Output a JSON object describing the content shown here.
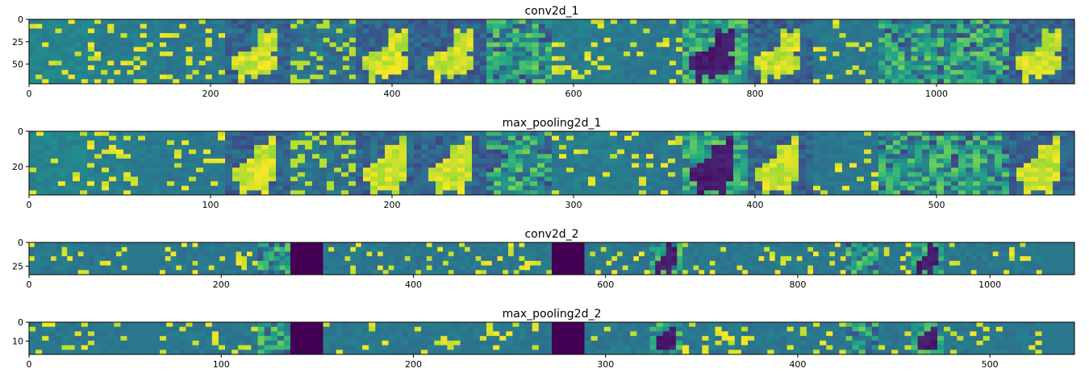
{
  "chart_data": [
    {
      "type": "heatmap",
      "title": "conv2d_1",
      "xlim": [
        0,
        1152
      ],
      "ylim": [
        72,
        0
      ],
      "num_maps": 16,
      "colormap": "viridis",
      "xticks": [
        0,
        200,
        400,
        600,
        800,
        1000
      ],
      "yticks": [
        0,
        25,
        50
      ],
      "grid": false,
      "maps": [
        {
          "style": "edges",
          "level": 0.45,
          "seed": 11
        },
        {
          "style": "edges",
          "level": 0.42,
          "seed": 12
        },
        {
          "style": "edges",
          "level": 0.4,
          "seed": 13
        },
        {
          "style": "fox-bright",
          "level": 0.28,
          "seed": 14
        },
        {
          "style": "noise",
          "level": 0.38,
          "seed": 15
        },
        {
          "style": "fox-bright",
          "level": 0.25,
          "seed": 16
        },
        {
          "style": "fox-bright",
          "level": 0.3,
          "seed": 17
        },
        {
          "style": "texture",
          "level": 0.35,
          "seed": 18
        },
        {
          "style": "edges",
          "level": 0.42,
          "seed": 19
        },
        {
          "style": "edges",
          "level": 0.4,
          "seed": 20
        },
        {
          "style": "fox-dark",
          "level": 0.3,
          "seed": 21
        },
        {
          "style": "fox-bright",
          "level": 0.25,
          "seed": 22
        },
        {
          "style": "edges",
          "level": 0.4,
          "seed": 23
        },
        {
          "style": "texture",
          "level": 0.35,
          "seed": 24
        },
        {
          "style": "texture",
          "level": 0.35,
          "seed": 25
        },
        {
          "style": "fox-bright",
          "level": 0.3,
          "seed": 26
        }
      ]
    },
    {
      "type": "heatmap",
      "title": "max_pooling2d_1",
      "xlim": [
        0,
        576
      ],
      "ylim": [
        36,
        0
      ],
      "num_maps": 16,
      "colormap": "viridis",
      "xticks": [
        0,
        100,
        200,
        300,
        400,
        500
      ],
      "yticks": [
        0,
        20
      ],
      "grid": false,
      "maps": [
        {
          "style": "edges",
          "level": 0.45,
          "seed": 31
        },
        {
          "style": "edges",
          "level": 0.42,
          "seed": 32
        },
        {
          "style": "edges",
          "level": 0.4,
          "seed": 33
        },
        {
          "style": "fox-bright",
          "level": 0.28,
          "seed": 34
        },
        {
          "style": "noise",
          "level": 0.38,
          "seed": 35
        },
        {
          "style": "fox-bright",
          "level": 0.25,
          "seed": 36
        },
        {
          "style": "fox-bright",
          "level": 0.3,
          "seed": 37
        },
        {
          "style": "texture",
          "level": 0.35,
          "seed": 38
        },
        {
          "style": "edges",
          "level": 0.42,
          "seed": 39
        },
        {
          "style": "edges",
          "level": 0.4,
          "seed": 40
        },
        {
          "style": "fox-dark",
          "level": 0.3,
          "seed": 41
        },
        {
          "style": "fox-bright",
          "level": 0.25,
          "seed": 42
        },
        {
          "style": "edges",
          "level": 0.4,
          "seed": 43
        },
        {
          "style": "texture",
          "level": 0.35,
          "seed": 44
        },
        {
          "style": "texture",
          "level": 0.35,
          "seed": 45
        },
        {
          "style": "fox-bright",
          "level": 0.3,
          "seed": 46
        }
      ]
    },
    {
      "type": "heatmap",
      "title": "conv2d_2",
      "xlim": [
        0,
        1088
      ],
      "ylim": [
        34,
        0
      ],
      "num_maps": 32,
      "colormap": "viridis",
      "xticks": [
        0,
        200,
        400,
        600,
        800,
        1000
      ],
      "yticks": [
        0,
        25
      ],
      "grid": false,
      "maps": [
        {
          "style": "edges",
          "level": 0.4,
          "seed": 51
        },
        {
          "style": "edges",
          "level": 0.4,
          "seed": 52
        },
        {
          "style": "edges",
          "level": 0.4,
          "seed": 53
        },
        {
          "style": "flat",
          "level": 0.4,
          "seed": 54
        },
        {
          "style": "edges",
          "level": 0.4,
          "seed": 55
        },
        {
          "style": "edges",
          "level": 0.4,
          "seed": 56
        },
        {
          "style": "edges",
          "level": 0.4,
          "seed": 57
        },
        {
          "style": "texture",
          "level": 0.35,
          "seed": 58
        },
        {
          "style": "dead",
          "level": 0.0,
          "seed": 59
        },
        {
          "style": "edges",
          "level": 0.4,
          "seed": 60
        },
        {
          "style": "edges",
          "level": 0.4,
          "seed": 61
        },
        {
          "style": "edges",
          "level": 0.4,
          "seed": 62
        },
        {
          "style": "edges",
          "level": 0.4,
          "seed": 63
        },
        {
          "style": "edges",
          "level": 0.4,
          "seed": 64
        },
        {
          "style": "edges",
          "level": 0.4,
          "seed": 65
        },
        {
          "style": "edges",
          "level": 0.4,
          "seed": 66
        },
        {
          "style": "dead",
          "level": 0.0,
          "seed": 67
        },
        {
          "style": "edges",
          "level": 0.4,
          "seed": 68
        },
        {
          "style": "edges",
          "level": 0.4,
          "seed": 69
        },
        {
          "style": "fox-dark",
          "level": 0.35,
          "seed": 70
        },
        {
          "style": "edges",
          "level": 0.4,
          "seed": 71
        },
        {
          "style": "edges",
          "level": 0.4,
          "seed": 72
        },
        {
          "style": "edges",
          "level": 0.4,
          "seed": 73
        },
        {
          "style": "edges",
          "level": 0.4,
          "seed": 74
        },
        {
          "style": "edges",
          "level": 0.4,
          "seed": 75
        },
        {
          "style": "texture",
          "level": 0.35,
          "seed": 76
        },
        {
          "style": "edges",
          "level": 0.4,
          "seed": 77
        },
        {
          "style": "fox-dark",
          "level": 0.35,
          "seed": 78
        },
        {
          "style": "edges",
          "level": 0.4,
          "seed": 79
        },
        {
          "style": "edges",
          "level": 0.4,
          "seed": 80
        },
        {
          "style": "edges",
          "level": 0.4,
          "seed": 81
        },
        {
          "style": "flat",
          "level": 0.4,
          "seed": 82
        }
      ]
    },
    {
      "type": "heatmap",
      "title": "max_pooling2d_2",
      "xlim": [
        0,
        544
      ],
      "ylim": [
        17,
        0
      ],
      "num_maps": 32,
      "colormap": "viridis",
      "xticks": [
        0,
        100,
        200,
        300,
        400,
        500
      ],
      "yticks": [
        0,
        10
      ],
      "grid": false,
      "maps": [
        {
          "style": "edges",
          "level": 0.4,
          "seed": 91
        },
        {
          "style": "edges",
          "level": 0.4,
          "seed": 92
        },
        {
          "style": "edges",
          "level": 0.4,
          "seed": 93
        },
        {
          "style": "flat",
          "level": 0.4,
          "seed": 94
        },
        {
          "style": "edges",
          "level": 0.4,
          "seed": 95
        },
        {
          "style": "edges",
          "level": 0.4,
          "seed": 96
        },
        {
          "style": "edges",
          "level": 0.4,
          "seed": 97
        },
        {
          "style": "texture",
          "level": 0.35,
          "seed": 98
        },
        {
          "style": "dead",
          "level": 0.0,
          "seed": 99
        },
        {
          "style": "edges",
          "level": 0.4,
          "seed": 100
        },
        {
          "style": "edges",
          "level": 0.4,
          "seed": 101
        },
        {
          "style": "edges",
          "level": 0.4,
          "seed": 102
        },
        {
          "style": "edges",
          "level": 0.4,
          "seed": 103
        },
        {
          "style": "edges",
          "level": 0.4,
          "seed": 104
        },
        {
          "style": "edges",
          "level": 0.4,
          "seed": 105
        },
        {
          "style": "edges",
          "level": 0.4,
          "seed": 106
        },
        {
          "style": "dead",
          "level": 0.0,
          "seed": 107
        },
        {
          "style": "edges",
          "level": 0.4,
          "seed": 108
        },
        {
          "style": "edges",
          "level": 0.4,
          "seed": 109
        },
        {
          "style": "fox-dark",
          "level": 0.35,
          "seed": 110
        },
        {
          "style": "edges",
          "level": 0.4,
          "seed": 111
        },
        {
          "style": "edges",
          "level": 0.4,
          "seed": 112
        },
        {
          "style": "edges",
          "level": 0.4,
          "seed": 113
        },
        {
          "style": "edges",
          "level": 0.4,
          "seed": 114
        },
        {
          "style": "edges",
          "level": 0.4,
          "seed": 115
        },
        {
          "style": "texture",
          "level": 0.35,
          "seed": 116
        },
        {
          "style": "edges",
          "level": 0.4,
          "seed": 117
        },
        {
          "style": "fox-dark",
          "level": 0.35,
          "seed": 118
        },
        {
          "style": "edges",
          "level": 0.4,
          "seed": 119
        },
        {
          "style": "edges",
          "level": 0.4,
          "seed": 120
        },
        {
          "style": "edges",
          "level": 0.4,
          "seed": 121
        },
        {
          "style": "flat",
          "level": 0.4,
          "seed": 122
        }
      ]
    }
  ]
}
